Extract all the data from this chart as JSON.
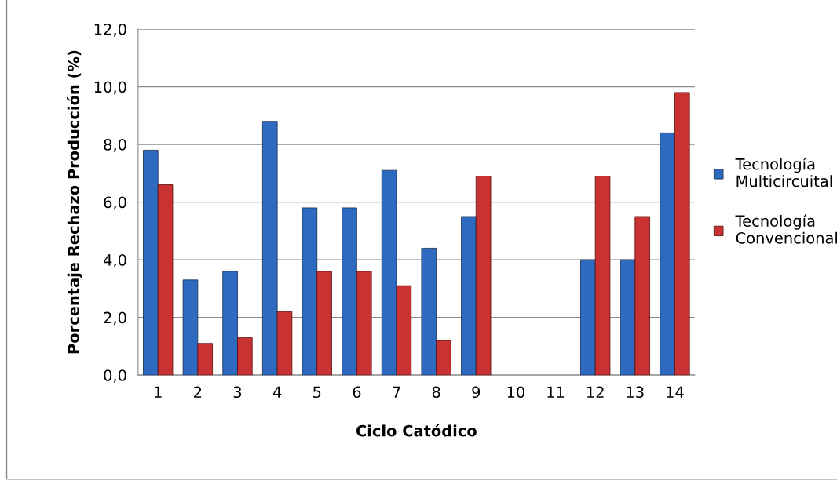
{
  "chart_data": {
    "type": "bar",
    "xlabel": "Ciclo Catódico",
    "ylabel": "Porcentaje Rechazo Producción (%)",
    "categories": [
      "1",
      "2",
      "3",
      "4",
      "5",
      "6",
      "7",
      "8",
      "9",
      "10",
      "11",
      "12",
      "13",
      "14"
    ],
    "series": [
      {
        "name": "Tecnología Multicircuital",
        "color": "#2e6bc0",
        "values": [
          7.8,
          3.3,
          3.6,
          8.8,
          5.8,
          5.8,
          7.1,
          4.4,
          5.5,
          null,
          null,
          4.0,
          4.0,
          8.4
        ]
      },
      {
        "name": "Tecnología Convencional",
        "color": "#c83232",
        "values": [
          6.6,
          1.1,
          1.3,
          2.2,
          3.6,
          3.6,
          3.1,
          1.2,
          6.9,
          null,
          null,
          6.9,
          5.5,
          9.8
        ]
      }
    ],
    "ylim": [
      0,
      12
    ],
    "yticks": [
      {
        "value": 0,
        "label": "0,0"
      },
      {
        "value": 2,
        "label": "2,0"
      },
      {
        "value": 4,
        "label": "4,0"
      },
      {
        "value": 6,
        "label": "6,0"
      },
      {
        "value": 8,
        "label": "8,0"
      },
      {
        "value": 10,
        "label": "10,0"
      },
      {
        "value": 12,
        "label": "12,0"
      }
    ],
    "grid": "y",
    "legend": "right"
  }
}
